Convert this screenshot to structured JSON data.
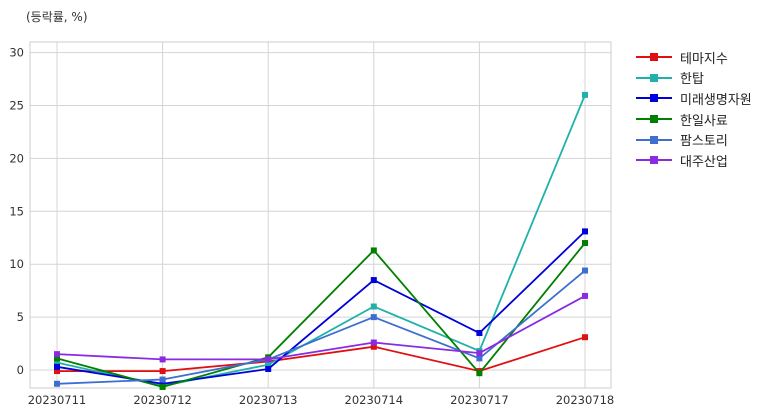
{
  "chart_data": {
    "type": "line",
    "title": "",
    "unit_label": "(등락률, %)",
    "xlabel": "",
    "ylabel": "",
    "categories": [
      "20230711",
      "20230712",
      "20230713",
      "20230714",
      "20230717",
      "20230718"
    ],
    "ylim": [
      -1.7,
      31
    ],
    "yticks": [
      0,
      5,
      10,
      15,
      20,
      25,
      30
    ],
    "grid": true,
    "legend_position": "right-outside-top",
    "series": [
      {
        "name": "테마지수",
        "color": "#e01010",
        "values": [
          -0.1,
          -0.1,
          0.8,
          2.2,
          -0.1,
          3.1
        ]
      },
      {
        "name": "한탑",
        "color": "#20b2aa",
        "values": [
          0.7,
          -1.5,
          0.5,
          6.0,
          1.8,
          26.0
        ]
      },
      {
        "name": "미래생명자원",
        "color": "#0000dd",
        "values": [
          0.3,
          -1.3,
          0.1,
          8.5,
          3.5,
          13.1
        ]
      },
      {
        "name": "한일사료",
        "color": "#008000",
        "values": [
          1.1,
          -1.6,
          1.2,
          11.3,
          -0.3,
          12.0
        ]
      },
      {
        "name": "팜스토리",
        "color": "#3c6fd0",
        "values": [
          -1.3,
          -0.9,
          1.0,
          5.0,
          1.1,
          9.4
        ]
      },
      {
        "name": "대주산업",
        "color": "#8a2be2",
        "values": [
          1.5,
          1.0,
          1.0,
          2.6,
          1.6,
          7.0
        ]
      }
    ]
  }
}
